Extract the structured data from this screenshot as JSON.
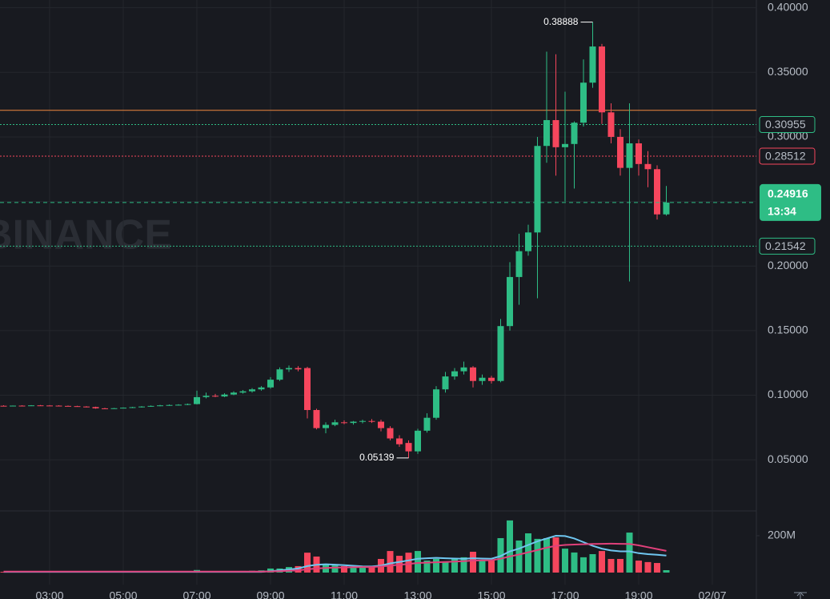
{
  "chart_data": {
    "type": "candlestick",
    "watermark": "BINANCE",
    "x": [
      1.75,
      2,
      2.25,
      2.5,
      2.75,
      3,
      3.25,
      3.5,
      3.75,
      4,
      4.25,
      4.5,
      4.75,
      5,
      5.25,
      5.5,
      5.75,
      6,
      6.25,
      6.5,
      6.75,
      7,
      7.25,
      7.5,
      7.75,
      8,
      8.25,
      8.5,
      8.75,
      9,
      9.25,
      9.5,
      9.75,
      10,
      10.25,
      10.5,
      10.75,
      11,
      11.25,
      11.5,
      11.75,
      12,
      12.25,
      12.5,
      12.75,
      13,
      13.25,
      13.5,
      13.75,
      14,
      14.25,
      14.5,
      14.75,
      15,
      15.25,
      15.5,
      15.75,
      16,
      16.25,
      16.5,
      16.75,
      17,
      17.25,
      17.5,
      17.75,
      18,
      18.25,
      18.5,
      18.75,
      19,
      19.25,
      19.5,
      19.75
    ],
    "open": [
      0.0918,
      0.0917,
      0.0919,
      0.0918,
      0.0921,
      0.092,
      0.0919,
      0.0917,
      0.0915,
      0.0912,
      0.0908,
      0.0898,
      0.0896,
      0.0899,
      0.0903,
      0.0907,
      0.0912,
      0.0917,
      0.0921,
      0.0924,
      0.0926,
      0.0931,
      0.0985,
      0.0995,
      0.099,
      0.1005,
      0.102,
      0.103,
      0.1045,
      0.106,
      0.112,
      0.12,
      0.121,
      0.121,
      0.0885,
      0.0745,
      0.077,
      0.079,
      0.0785,
      0.0795,
      0.08,
      0.0795,
      0.0745,
      0.0665,
      0.063,
      0.0565,
      0.0725,
      0.0825,
      0.1045,
      0.1145,
      0.1185,
      0.1215,
      0.111,
      0.1135,
      0.111,
      0.1535,
      0.1915,
      0.2115,
      0.226,
      0.293,
      0.313,
      0.292,
      0.2945,
      0.311,
      0.342,
      0.37,
      0.319,
      0.3,
      0.276,
      0.295,
      0.279,
      0.275,
      0.24
    ],
    "high": [
      0.0922,
      0.092,
      0.0922,
      0.0923,
      0.0924,
      0.0923,
      0.0922,
      0.092,
      0.0918,
      0.0915,
      0.0911,
      0.0902,
      0.0901,
      0.0905,
      0.091,
      0.0915,
      0.092,
      0.0925,
      0.0928,
      0.093,
      0.0935,
      0.1035,
      0.102,
      0.101,
      0.1015,
      0.103,
      0.104,
      0.1055,
      0.107,
      0.114,
      0.1215,
      0.123,
      0.1225,
      0.122,
      0.0895,
      0.079,
      0.081,
      0.0805,
      0.08,
      0.081,
      0.0815,
      0.081,
      0.076,
      0.069,
      0.065,
      0.074,
      0.086,
      0.107,
      0.118,
      0.121,
      0.126,
      0.1225,
      0.116,
      0.115,
      0.159,
      0.203,
      0.225,
      0.232,
      0.3,
      0.366,
      0.364,
      0.335,
      0.312,
      0.36,
      0.38888,
      0.372,
      0.326,
      0.306,
      0.326,
      0.298,
      0.289,
      0.278,
      0.262
    ],
    "low": [
      0.0915,
      0.0914,
      0.0916,
      0.0916,
      0.0918,
      0.0917,
      0.0915,
      0.0913,
      0.091,
      0.0905,
      0.0895,
      0.0893,
      0.0894,
      0.0897,
      0.09,
      0.0904,
      0.091,
      0.0914,
      0.0918,
      0.092,
      0.0923,
      0.0928,
      0.0975,
      0.0985,
      0.0985,
      0.1,
      0.1012,
      0.102,
      0.1035,
      0.105,
      0.111,
      0.118,
      0.1185,
      0.082,
      0.0735,
      0.0705,
      0.076,
      0.0775,
      0.0772,
      0.0782,
      0.0785,
      0.072,
      0.065,
      0.06,
      0.05139,
      0.0545,
      0.071,
      0.081,
      0.102,
      0.112,
      0.116,
      0.106,
      0.108,
      0.109,
      0.11,
      0.15,
      0.17,
      0.208,
      0.175,
      0.28,
      0.27,
      0.25,
      0.26,
      0.308,
      0.338,
      0.31,
      0.295,
      0.27,
      0.188,
      0.27,
      0.261,
      0.236,
      0.239
    ],
    "close": [
      0.0917,
      0.0919,
      0.0918,
      0.0921,
      0.092,
      0.0919,
      0.0917,
      0.0915,
      0.0912,
      0.0908,
      0.0898,
      0.0896,
      0.0899,
      0.0903,
      0.0907,
      0.0912,
      0.0917,
      0.0921,
      0.0924,
      0.0926,
      0.0931,
      0.0985,
      0.0995,
      0.099,
      0.1005,
      0.102,
      0.103,
      0.1045,
      0.106,
      0.112,
      0.12,
      0.121,
      0.12,
      0.0885,
      0.0745,
      0.077,
      0.079,
      0.0785,
      0.0795,
      0.08,
      0.0795,
      0.0745,
      0.0665,
      0.062,
      0.0565,
      0.0725,
      0.0825,
      0.1045,
      0.1145,
      0.1185,
      0.1215,
      0.111,
      0.1135,
      0.111,
      0.1535,
      0.1915,
      0.2115,
      0.226,
      0.293,
      0.313,
      0.292,
      0.2945,
      0.311,
      0.342,
      0.37,
      0.319,
      0.3,
      0.276,
      0.295,
      0.279,
      0.275,
      0.24,
      0.24916
    ],
    "up_color": "#2ebd85",
    "down_color": "#f6465d",
    "xlim": [
      1.652,
      22.196
    ],
    "xticks": [
      {
        "value": 3,
        "label": "03:00"
      },
      {
        "value": 5,
        "label": "05:00"
      },
      {
        "value": 7,
        "label": "07:00"
      },
      {
        "value": 9,
        "label": "09:00"
      },
      {
        "value": 11,
        "label": "11:00"
      },
      {
        "value": 13,
        "label": "13:00"
      },
      {
        "value": 15,
        "label": "15:00"
      },
      {
        "value": 17,
        "label": "17:00"
      },
      {
        "value": 19,
        "label": "19:00"
      },
      {
        "value": 21,
        "label": "02/07"
      }
    ],
    "ylim": [
      0.011,
      0.406
    ],
    "yticks": [
      {
        "value": 0.05,
        "label": "0.05000"
      },
      {
        "value": 0.1,
        "label": "0.10000"
      },
      {
        "value": 0.15,
        "label": "0.15000"
      },
      {
        "value": 0.2,
        "label": "0.20000"
      },
      {
        "value": 0.25,
        "label": "0.25000"
      },
      {
        "value": 0.3,
        "label": "0.30000"
      },
      {
        "value": 0.35,
        "label": "0.35000"
      },
      {
        "value": 0.4,
        "label": "0.40000"
      }
    ],
    "grid": true,
    "price_lines": [
      {
        "value": 0.3206,
        "color": "#f0883e",
        "dash": "none",
        "show_label": false
      },
      {
        "value": 0.30955,
        "color": "#2ebd85",
        "dash": "2 2",
        "show_label": true
      },
      {
        "value": 0.28512,
        "color": "#f6465d",
        "dash": "2 2",
        "show_label": true
      },
      {
        "value": 0.21542,
        "color": "#2ebd85",
        "dash": "2 2",
        "show_label": true
      }
    ],
    "countdown": "13:34",
    "volume": {
      "values": [
        4,
        3,
        4,
        3,
        3,
        4,
        3,
        3,
        4,
        3,
        5,
        4,
        3,
        4,
        3,
        4,
        5,
        4,
        5,
        6,
        6,
        14,
        8,
        6,
        7,
        8,
        9,
        10,
        12,
        22,
        22,
        30,
        35,
        108,
        87,
        43,
        39,
        35,
        30,
        30,
        30,
        74,
        117,
        91,
        108,
        117,
        65,
        74,
        57,
        78,
        83,
        113,
        65,
        65,
        187,
        283,
        174,
        213,
        183,
        187,
        191,
        130,
        109,
        83,
        100,
        117,
        74,
        74,
        217,
        65,
        57,
        52,
        13
      ],
      "ylim": [
        0,
        326
      ],
      "yticks": [
        {
          "value": 200,
          "label": "200M"
        }
      ],
      "ma": [
        {
          "color": "#6fc6f0",
          "values": [
            4,
            4,
            4,
            4,
            4,
            4,
            4,
            4,
            4,
            4,
            4,
            4,
            4,
            4,
            4,
            4,
            4,
            4,
            4,
            4,
            4,
            4,
            4,
            4,
            4,
            4,
            4,
            4,
            4,
            8,
            12,
            17,
            22,
            35,
            42,
            45,
            43,
            40,
            37,
            34,
            33,
            38,
            50,
            58,
            66,
            75,
            78,
            80,
            78,
            76,
            75,
            78,
            76,
            75,
            90,
            115,
            130,
            150,
            170,
            185,
            200,
            198,
            185,
            165,
            145,
            130,
            120,
            115,
            115,
            105,
            100,
            97,
            92
          ]
        },
        {
          "color": "#e0407a",
          "values": [
            5,
            5,
            5,
            5,
            5,
            5,
            5,
            5,
            5,
            5,
            5,
            5,
            5,
            5,
            5,
            5,
            5,
            5,
            5,
            5,
            5,
            5,
            5,
            5,
            5,
            5,
            5,
            5,
            5,
            6,
            8,
            10,
            12,
            18,
            22,
            25,
            27,
            28,
            29,
            30,
            30,
            33,
            38,
            42,
            47,
            52,
            54,
            56,
            58,
            60,
            62,
            65,
            66,
            67,
            75,
            88,
            98,
            110,
            122,
            135,
            145,
            150,
            152,
            154,
            155,
            156,
            157,
            156,
            155,
            148,
            138,
            128,
            118
          ]
        }
      ]
    }
  }
}
